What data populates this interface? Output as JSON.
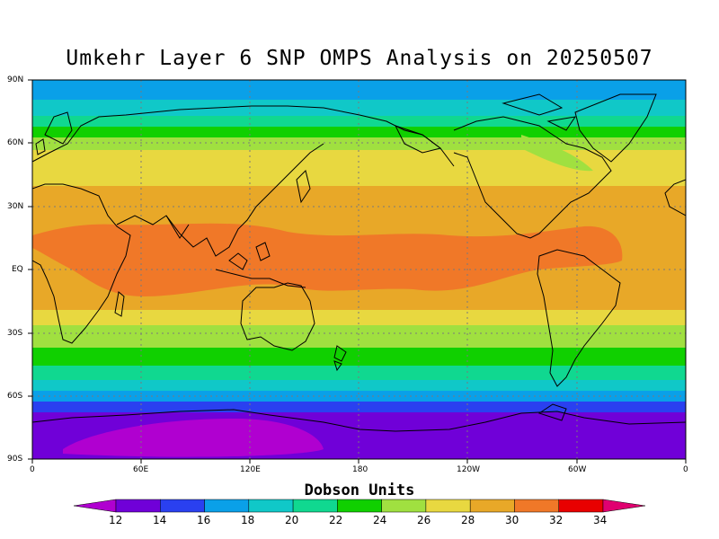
{
  "title": "Umkehr Layer 6 SNP OMPS Analysis on 20250507",
  "colorbar": {
    "title": "Dobson Units",
    "ticks": [
      "12",
      "14",
      "16",
      "18",
      "20",
      "22",
      "24",
      "26",
      "28",
      "30",
      "32",
      "34"
    ],
    "colors": [
      "#b000d0",
      "#7000d8",
      "#2a40f0",
      "#0aa0e8",
      "#10c8c8",
      "#10d890",
      "#10d000",
      "#a0e040",
      "#e8d840",
      "#e8a828",
      "#f07828",
      "#e80000",
      "#e00070"
    ]
  },
  "axes": {
    "lat_labels": [
      "90N",
      "60N",
      "30N",
      "EQ",
      "30S",
      "60S",
      "90S"
    ],
    "lon_labels": [
      "0",
      "60E",
      "120E",
      "180",
      "120W",
      "60W",
      "0"
    ]
  },
  "chart_data": {
    "type": "heatmap",
    "title": "Umkehr Layer 6 SNP OMPS Analysis on 20250507",
    "units": "Dobson Units",
    "x_range": [
      0,
      360
    ],
    "y_range": [
      -90,
      90
    ],
    "grid": true,
    "zonal_profile": [
      {
        "lat": 85,
        "value": 17
      },
      {
        "lat": 75,
        "value": 18
      },
      {
        "lat": 65,
        "value": 23
      },
      {
        "lat": 55,
        "value": 27
      },
      {
        "lat": 45,
        "value": 28
      },
      {
        "lat": 35,
        "value": 29
      },
      {
        "lat": 20,
        "value": 30
      },
      {
        "lat": 5,
        "value": 30
      },
      {
        "lat": -10,
        "value": 30
      },
      {
        "lat": -20,
        "value": 29
      },
      {
        "lat": -30,
        "value": 27
      },
      {
        "lat": -40,
        "value": 25
      },
      {
        "lat": -50,
        "value": 21
      },
      {
        "lat": -58,
        "value": 18
      },
      {
        "lat": -65,
        "value": 15
      },
      {
        "lat": -75,
        "value": 13
      },
      {
        "lat": -85,
        "value": 12
      }
    ]
  }
}
